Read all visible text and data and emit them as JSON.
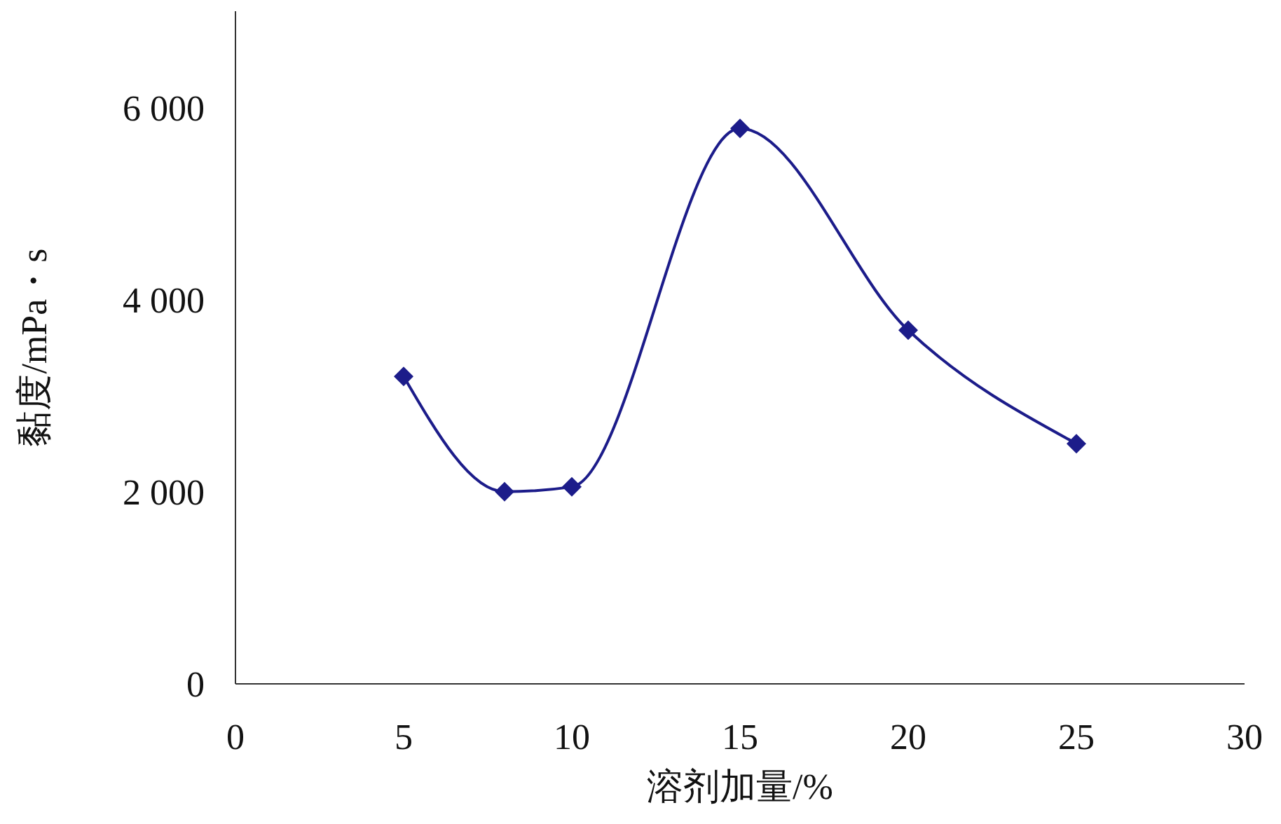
{
  "chart_data": {
    "type": "line",
    "xlabel": "溶剂加量/%",
    "ylabel": "黏度/mPa・s",
    "x": [
      5,
      8,
      10,
      15,
      20,
      25
    ],
    "series": [
      {
        "color": "#1c1c8a",
        "values": [
          3200,
          2000,
          2050,
          5780,
          3680,
          2500
        ]
      }
    ],
    "xlim": [
      0,
      30
    ],
    "xticks": [
      0,
      5,
      10,
      15,
      20,
      25,
      30
    ],
    "ylim": [
      0,
      7000
    ],
    "yticks": [
      {
        "value": 0,
        "label": "0"
      },
      {
        "value": 2000,
        "label": "2 000"
      },
      {
        "value": 4000,
        "label": "4 000"
      },
      {
        "value": 6000,
        "label": "6 000"
      }
    ],
    "marker": "diamond",
    "line_style": "solid",
    "grid": false,
    "legend": false
  }
}
